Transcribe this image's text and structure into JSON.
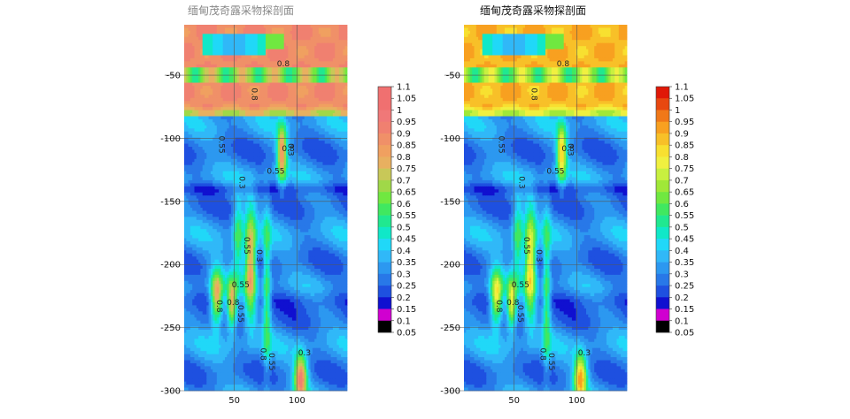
{
  "chart_data": [
    {
      "type": "heatmap",
      "title": "缅甸茂奇露采物探剖面",
      "palette": "faded",
      "title_color": "#888888",
      "x_ticks": [
        50,
        100
      ],
      "y_ticks": [
        -50,
        -100,
        -150,
        -200,
        -250,
        -300
      ],
      "xlim": [
        10,
        140
      ],
      "ylim": [
        -300,
        -10
      ],
      "grid": true,
      "colorbar_ticks": [
        "1.1",
        "1.05",
        "1",
        "0.95",
        "0.9",
        "0.85",
        "0.8",
        "0.75",
        "0.7",
        "0.65",
        "0.6",
        "0.55",
        "0.5",
        "0.45",
        "0.4",
        "0.35",
        "0.3",
        "0.25",
        "0.2",
        "0.15",
        "0.1",
        "0.05"
      ],
      "contour_labels": [
        "0.8",
        "0.8",
        "0.55",
        "0.8",
        "0.3",
        "0.3",
        "0.55",
        "0.55",
        "0.55",
        "0.8",
        "0.3",
        "0.8",
        "0.55",
        "0.8",
        "0.55",
        "0.3"
      ]
    },
    {
      "type": "heatmap",
      "title": "缅甸茂奇露采物探剖面",
      "palette": "vivid",
      "title_color": "#111111",
      "x_ticks": [
        50,
        100
      ],
      "y_ticks": [
        -50,
        -100,
        -150,
        -200,
        -250,
        -300
      ],
      "xlim": [
        10,
        140
      ],
      "ylim": [
        -300,
        -10
      ],
      "grid": true,
      "colorbar_ticks": [
        "1.1",
        "1.05",
        "1",
        "0.95",
        "0.9",
        "0.85",
        "0.8",
        "0.75",
        "0.7",
        "0.65",
        "0.6",
        "0.55",
        "0.5",
        "0.45",
        "0.4",
        "0.35",
        "0.3",
        "0.25",
        "0.2",
        "0.15",
        "0.1",
        "0.05"
      ],
      "contour_labels": [
        "0.8",
        "0.8",
        "0.55",
        "0.8",
        "0.3",
        "0.3",
        "0.55",
        "0.55",
        "0.55",
        "0.8",
        "0.3",
        "0.8",
        "0.55",
        "0.8",
        "0.55",
        "0.3"
      ]
    }
  ],
  "colors": {
    "vivid": [
      "#d000d0",
      "#1010d0",
      "#1e50e0",
      "#2878e8",
      "#2c98f0",
      "#30b8f8",
      "#20d8f8",
      "#10e8c8",
      "#20e890",
      "#40e860",
      "#70e840",
      "#a0e838",
      "#c8f040",
      "#f0f040",
      "#f8e030",
      "#f8c028",
      "#f8a020",
      "#f07818",
      "#e84810",
      "#e01808"
    ],
    "faded": [
      "#d000d0",
      "#1010d0",
      "#1e50e0",
      "#2878e8",
      "#2c98f0",
      "#30b8f8",
      "#20d8f8",
      "#10e8c8",
      "#20e890",
      "#40e860",
      "#70e840",
      "#a0d848",
      "#c8c858",
      "#e8b060",
      "#f0a060",
      "#f09068",
      "#f08070",
      "#f07878",
      "#f07070",
      "#f07070"
    ]
  }
}
